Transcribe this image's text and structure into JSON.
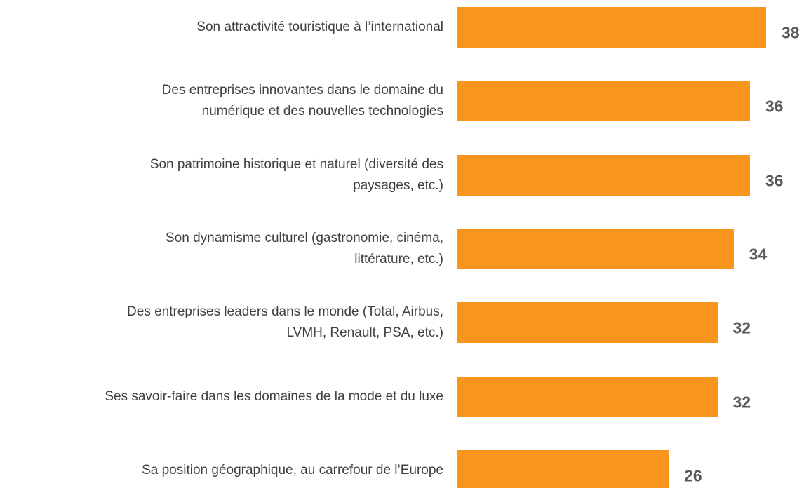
{
  "chart_data": {
    "type": "bar",
    "orientation": "horizontal",
    "color": "#f7951d",
    "categories": [
      "Son attractivité touristique à l’international",
      "Des entreprises innovantes dans le domaine du\nnumérique et des nouvelles technologies",
      "Son patrimoine historique et naturel (diversité des\npaysages, etc.)",
      "Son dynamisme culturel (gastronomie, cinéma,\nlittérature, etc.)",
      "Des entreprises leaders dans le monde (Total, Airbus,\nLVMH, Renault, PSA, etc.)",
      "Ses savoir-faire dans les domaines de la mode et du luxe",
      "Sa position géographique, au carrefour de l’Europe"
    ],
    "values": [
      38,
      36,
      36,
      34,
      32,
      32,
      26
    ]
  }
}
